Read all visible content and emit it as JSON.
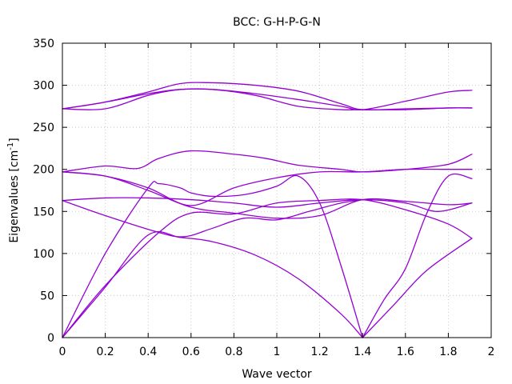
{
  "chart_data": {
    "type": "line",
    "title": "BCC: G-H-P-G-N",
    "xlabel": "Wave vector",
    "ylabel_main": "Eigenvalues [cm",
    "ylabel_sup": "-1",
    "ylabel_end": "]",
    "xlim": [
      0,
      2
    ],
    "ylim": [
      0,
      350
    ],
    "xticks": [
      0,
      0.2,
      0.4,
      0.6,
      0.8,
      1,
      1.2,
      1.4,
      1.6,
      1.8,
      2
    ],
    "xtick_labels": [
      "0",
      "0.2",
      "0.4",
      "0.6",
      "0.8",
      "1",
      "1.2",
      "1.4",
      "1.6",
      "1.8",
      "2"
    ],
    "yticks": [
      0,
      50,
      100,
      150,
      200,
      250,
      300,
      350
    ],
    "ytick_labels": [
      "0",
      "50",
      "100",
      "150",
      "200",
      "250",
      "300",
      "350"
    ],
    "grid": true,
    "legend": "none",
    "color": "#9400d3",
    "series": [
      {
        "x": [
          0,
          0.2,
          0.45,
          0.6,
          0.8,
          1.0,
          1.2,
          1.4,
          1.6,
          1.8,
          1.91
        ],
        "y": [
          0,
          62,
          125,
          148,
          147,
          160,
          163,
          164,
          152,
          135,
          118
        ]
      },
      {
        "x": [
          0,
          0.2,
          0.4,
          0.55,
          0.7,
          0.9,
          1.1,
          1.3,
          1.4
        ],
        "y": [
          0,
          60,
          122,
          119,
          114,
          98,
          70,
          28,
          0
        ]
      },
      {
        "x": [
          0,
          0.2,
          0.4,
          0.45,
          0.55,
          0.6,
          0.7,
          0.85,
          1.0,
          1.1,
          1.2,
          1.3,
          1.4
        ],
        "y": [
          0,
          100,
          178,
          183,
          178,
          172,
          168,
          170,
          180,
          192,
          160,
          85,
          0
        ]
      },
      {
        "x": [
          1.4,
          1.5,
          1.6,
          1.7,
          1.8,
          1.91
        ],
        "y": [
          0,
          45,
          82,
          148,
          192,
          189
        ]
      },
      {
        "x": [
          1.4,
          1.55,
          1.7,
          1.91
        ],
        "y": [
          0,
          40,
          80,
          118
        ]
      },
      {
        "x": [
          0,
          0.2,
          0.4,
          0.6,
          0.8,
          1.0,
          1.2,
          1.4,
          1.6,
          1.75,
          1.91
        ],
        "y": [
          163,
          166,
          166,
          164,
          160,
          155,
          160,
          164,
          160,
          150,
          160
        ]
      },
      {
        "x": [
          0,
          0.2,
          0.45,
          0.57,
          0.7,
          0.85,
          1.0,
          1.15,
          1.3,
          1.4
        ],
        "y": [
          163,
          145,
          125,
          120,
          130,
          142,
          140,
          150,
          160,
          164
        ]
      },
      {
        "x": [
          0,
          0.2,
          0.4,
          0.6,
          0.8,
          1.0,
          1.2,
          1.4,
          1.6,
          1.8,
          1.91
        ],
        "y": [
          197,
          192,
          178,
          157,
          178,
          190,
          197,
          197,
          200,
          200,
          200
        ]
      },
      {
        "x": [
          0,
          0.2,
          0.4,
          0.6,
          0.8,
          1.0,
          1.2,
          1.4,
          1.6,
          1.8,
          1.91
        ],
        "y": [
          197,
          192,
          175,
          155,
          148,
          142,
          145,
          164,
          162,
          158,
          160
        ]
      },
      {
        "x": [
          0,
          0.2,
          0.35,
          0.45,
          0.6,
          0.8,
          0.95,
          1.1,
          1.3,
          1.4,
          1.6,
          1.8,
          1.91
        ],
        "y": [
          197,
          204,
          201,
          213,
          222,
          218,
          213,
          205,
          200,
          197,
          200,
          206,
          218
        ]
      },
      {
        "x": [
          0,
          0.2,
          0.4,
          0.55,
          0.7,
          0.9,
          1.1,
          1.3,
          1.4,
          1.6,
          1.8,
          1.91
        ],
        "y": [
          272,
          272,
          288,
          295,
          295,
          288,
          275,
          271,
          271,
          271,
          273,
          273
        ]
      },
      {
        "x": [
          0,
          0.2,
          0.4,
          0.55,
          0.7,
          0.9,
          1.1,
          1.3,
          1.4,
          1.6,
          1.8,
          1.91
        ],
        "y": [
          272,
          280,
          290,
          295,
          295,
          290,
          283,
          275,
          271,
          281,
          292,
          294
        ]
      },
      {
        "x": [
          0,
          0.2,
          0.4,
          0.55,
          0.7,
          0.9,
          1.1,
          1.3,
          1.4,
          1.6,
          1.8,
          1.91
        ],
        "y": [
          272,
          280,
          292,
          302,
          303,
          300,
          293,
          278,
          271,
          272,
          273,
          273
        ]
      }
    ]
  }
}
